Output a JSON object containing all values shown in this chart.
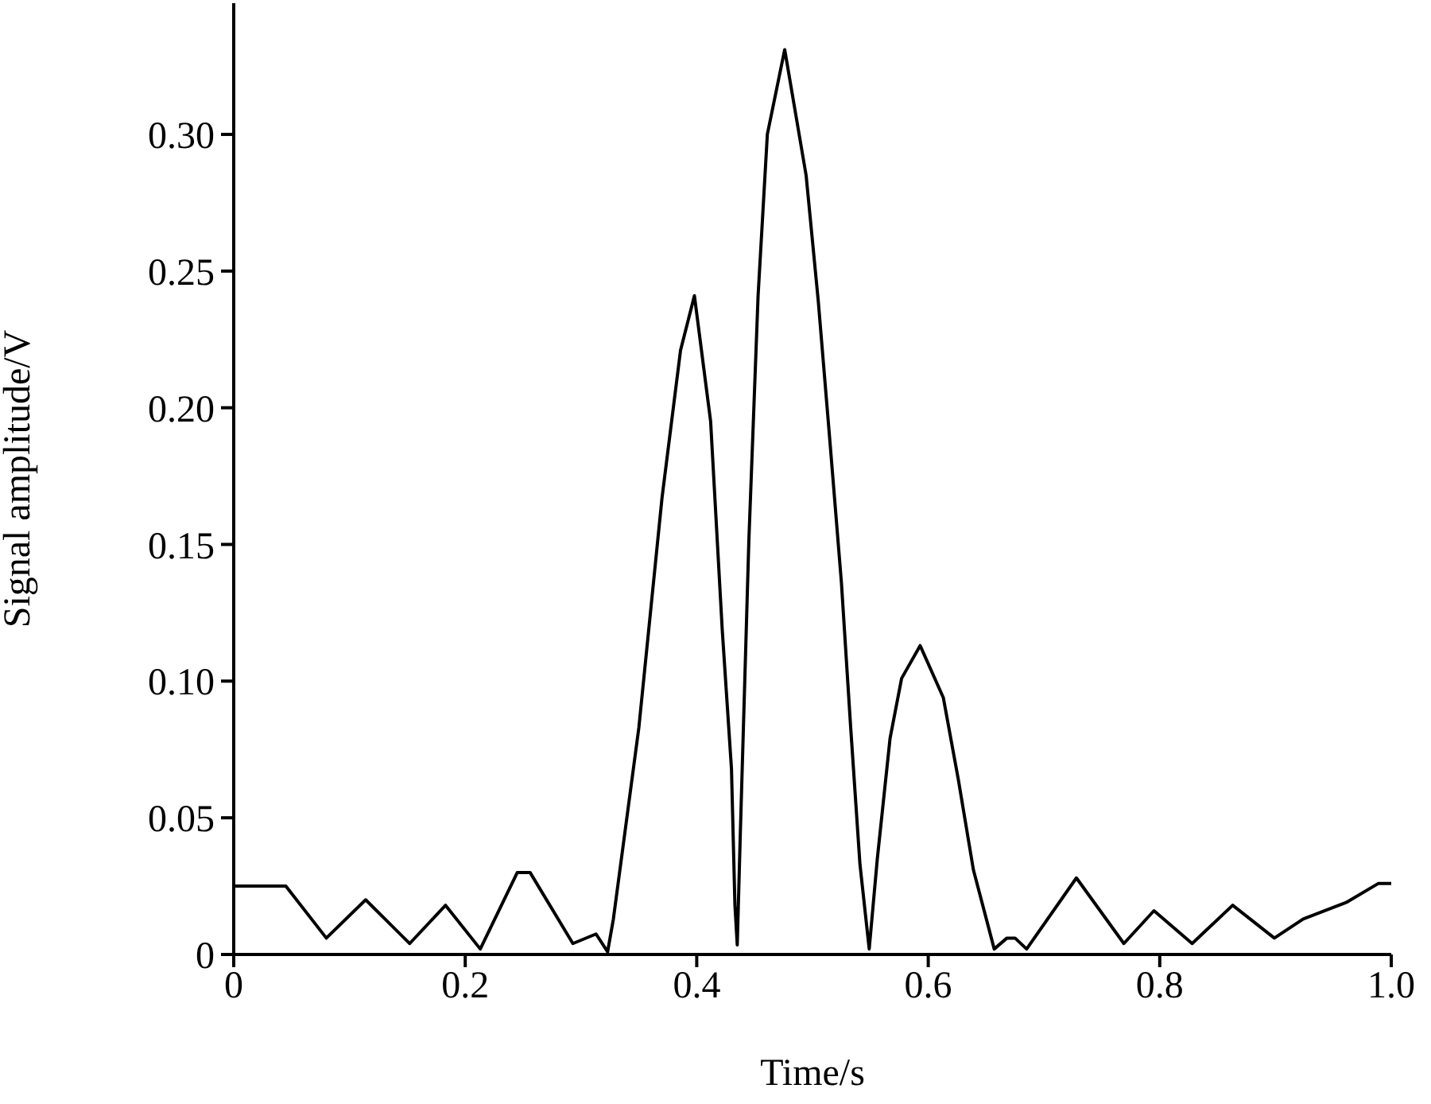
{
  "chart_data": {
    "type": "line",
    "xlabel": "Time/s",
    "ylabel": "Signal amplitude/V",
    "xlim": [
      0,
      1
    ],
    "ylim": [
      0,
      0.348
    ],
    "xticks": [
      0,
      0.2,
      0.4,
      0.6,
      0.8,
      {
        "value": 1,
        "label": "1.0"
      }
    ],
    "yticks": [
      0,
      0.05,
      {
        "value": 0.1,
        "label": "0.10"
      },
      0.15,
      {
        "value": 0.2,
        "label": "0.20"
      },
      0.25,
      {
        "value": 0.3,
        "label": "0.30"
      }
    ],
    "grid": false,
    "legend": false,
    "marker": "none",
    "line_style": "solid",
    "series": [
      {
        "color": "#000000",
        "x": [
          0,
          0.045,
          0.08,
          0.114,
          0.152,
          0.183,
          0.213,
          0.245,
          0.256,
          0.293,
          0.313,
          0.323,
          0.328,
          0.35,
          0.37,
          0.386,
          0.398,
          0.412,
          0.422,
          0.43,
          0.433,
          0.435,
          0.4375,
          0.445,
          0.453,
          0.461,
          0.476,
          0.4945,
          0.505,
          0.515,
          0.525,
          0.533,
          0.541,
          0.549,
          0.556,
          0.567,
          0.577,
          0.593,
          0.613,
          0.626,
          0.639,
          0.657,
          0.668,
          0.675,
          0.685,
          0.728,
          0.769,
          0.795,
          0.828,
          0.863,
          0.899,
          0.924,
          0.961,
          0.989,
          1
        ],
        "values": [
          0.025,
          0.025,
          0.006,
          0.02,
          0.004,
          0.018,
          0.002,
          0.03,
          0.03,
          0.004,
          0.0075,
          0.001,
          0.013,
          0.083,
          0.167,
          0.221,
          0.241,
          0.195,
          0.119,
          0.068,
          0.018,
          0.0035,
          0.042,
          0.151,
          0.241,
          0.3,
          0.331,
          0.285,
          0.239,
          0.188,
          0.136,
          0.083,
          0.033,
          0.002,
          0.035,
          0.079,
          0.101,
          0.113,
          0.094,
          0.064,
          0.031,
          0.002,
          0.006,
          0.006,
          0.002,
          0.028,
          0.004,
          0.016,
          0.004,
          0.018,
          0.006,
          0.013,
          0.019,
          0.026,
          0.026
        ]
      }
    ]
  }
}
